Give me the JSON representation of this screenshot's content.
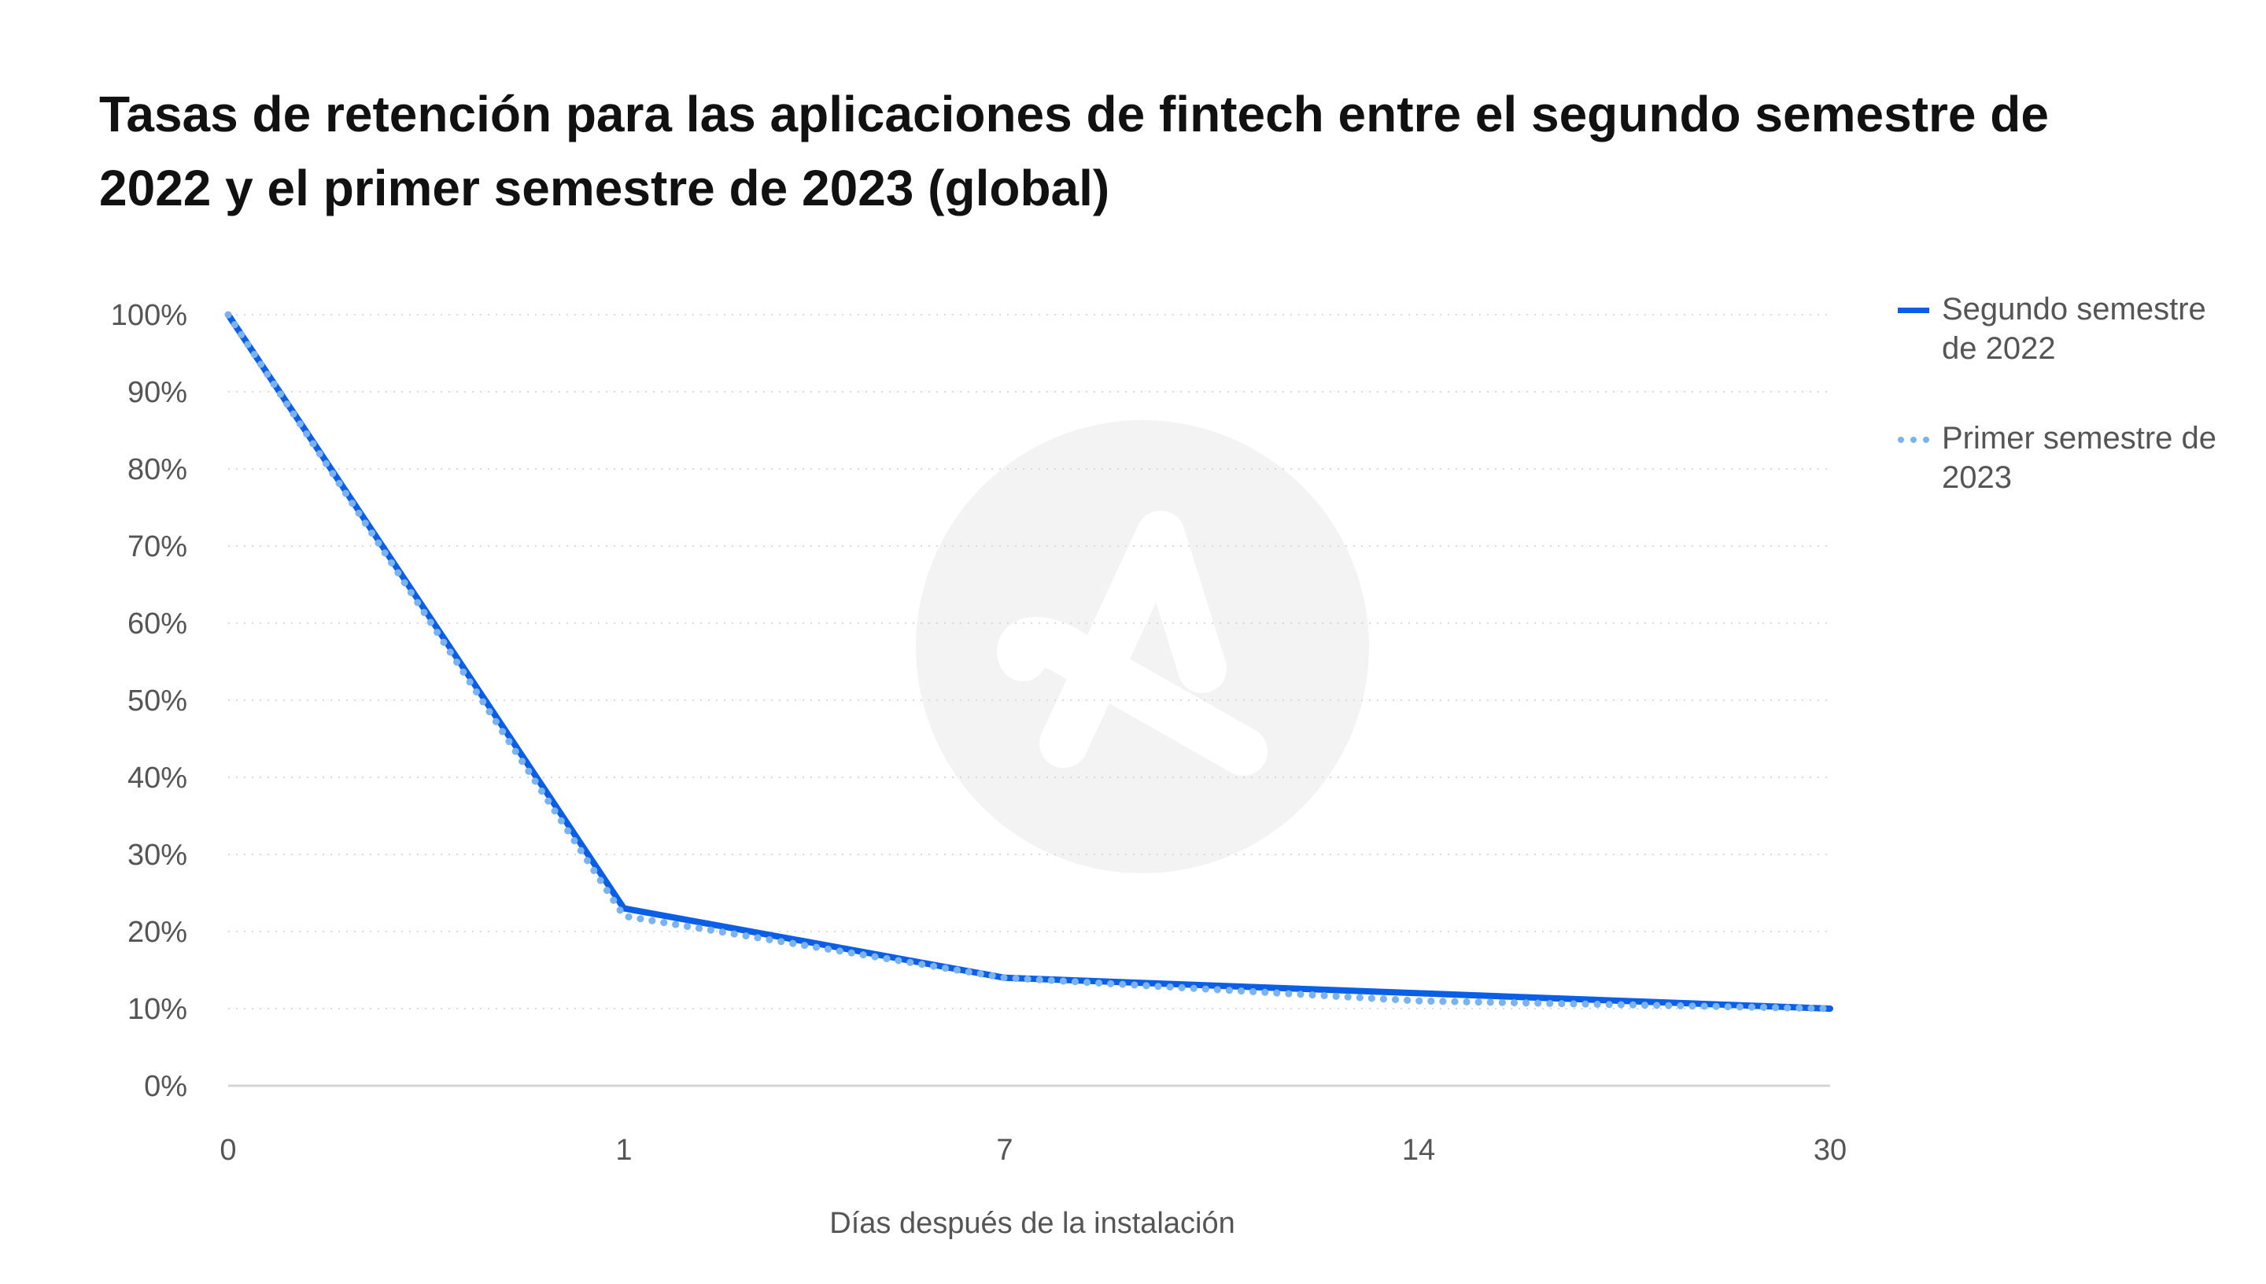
{
  "chart_data": {
    "type": "line",
    "title": "Tasas de retención para las aplicaciones de fintech entre el segundo semestre de 2022 y el primer semestre de 2023 (global)",
    "xlabel": "Días después de la instalación",
    "ylabel": "",
    "categories": [
      "0",
      "1",
      "7",
      "14",
      "30"
    ],
    "y_ticks": [
      "0%",
      "10%",
      "20%",
      "30%",
      "40%",
      "50%",
      "60%",
      "70%",
      "80%",
      "90%",
      "100%"
    ],
    "ylim": [
      0,
      100
    ],
    "grid": true,
    "legend_position": "right",
    "series": [
      {
        "name": "Segundo semestre de 2022",
        "values": [
          100,
          23,
          14,
          12,
          10
        ],
        "color": "#0a5fe6",
        "style": "solid"
      },
      {
        "name": "Primer semestre de 2023",
        "values": [
          100,
          22,
          14,
          11,
          10
        ],
        "color": "#7ab3f0",
        "style": "dotted"
      }
    ]
  }
}
